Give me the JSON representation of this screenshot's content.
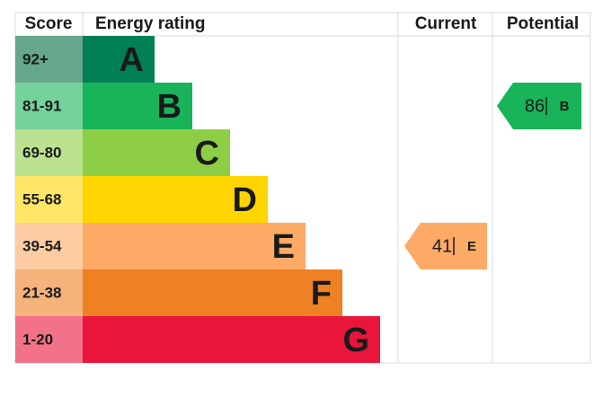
{
  "headers": {
    "score": "Score",
    "rating": "Energy rating",
    "current": "Current",
    "potential": "Potential"
  },
  "bands": [
    {
      "score": "92+",
      "letter": "A",
      "color": "#008054",
      "light": "#66a68a"
    },
    {
      "score": "81-91",
      "letter": "B",
      "color": "#19b459",
      "light": "#75d29b"
    },
    {
      "score": "69-80",
      "letter": "C",
      "color": "#8dce46",
      "light": "#bbe290"
    },
    {
      "score": "55-68",
      "letter": "D",
      "color": "#ffd500",
      "light": "#ffe666"
    },
    {
      "score": "39-54",
      "letter": "E",
      "color": "#fcaa65",
      "light": "#fdcca3"
    },
    {
      "score": "21-38",
      "letter": "F",
      "color": "#ef8023",
      "light": "#f5b37b"
    },
    {
      "score": "1-20",
      "letter": "G",
      "color": "#e9153b",
      "light": "#f27389"
    }
  ],
  "current": {
    "score": 41,
    "letter": "E"
  },
  "potential": {
    "score": 86,
    "letter": "B"
  }
}
